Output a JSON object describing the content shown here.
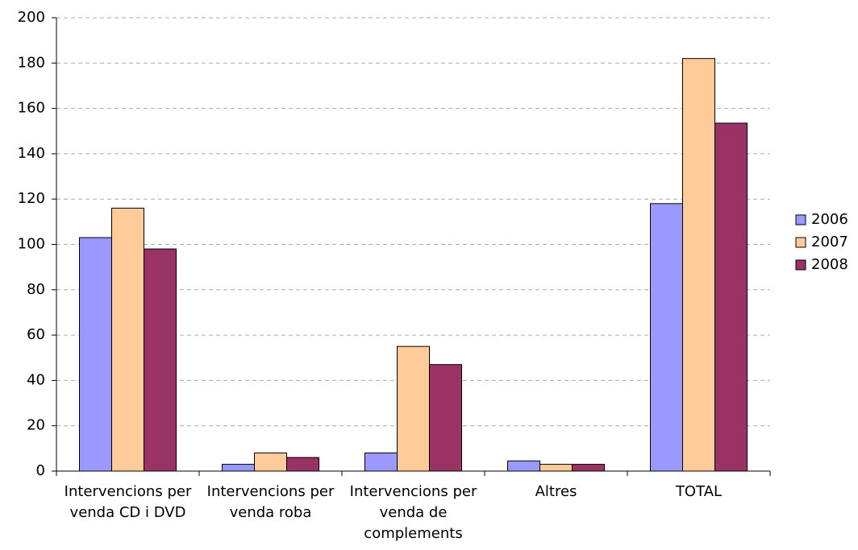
{
  "chart_data": {
    "type": "bar",
    "categories": [
      "Intervencions per venda CD i DVD",
      "Intervencions per venda roba",
      "Intervencions per venda de complements",
      "Altres",
      "TOTAL"
    ],
    "series": [
      {
        "name": "2006",
        "color": "#9999ff",
        "values": [
          103,
          3,
          8,
          4.5,
          118
        ]
      },
      {
        "name": "2007",
        "color": "#ffcc99",
        "values": [
          116,
          8,
          55,
          3,
          182
        ]
      },
      {
        "name": "2008",
        "color": "#993366",
        "values": [
          98,
          6,
          47,
          3,
          153.5
        ]
      }
    ],
    "ylim": [
      0,
      200
    ],
    "yticks": [
      0,
      20,
      40,
      60,
      80,
      100,
      120,
      140,
      160,
      180,
      200
    ],
    "grid": true,
    "legend": "right"
  }
}
